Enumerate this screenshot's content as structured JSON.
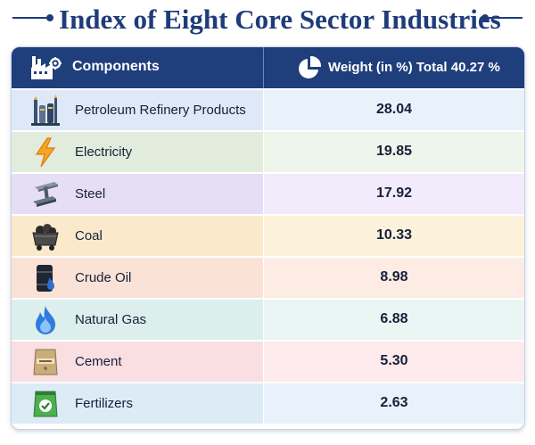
{
  "title": "Index of Eight Core Sector Industries",
  "header": {
    "components_label": "Components",
    "components_icon": "factory-icon",
    "weight_label": "Weight (in %) Total 40.27 %",
    "weight_icon": "pie-chart-icon"
  },
  "rows": [
    {
      "name": "Petroleum Refinery Products",
      "value": "28.04",
      "icon": "refinery-icon",
      "colors": {
        "left": "#dde9f6",
        "right": "#e9f1fb"
      }
    },
    {
      "name": "Electricity",
      "value": "19.85",
      "icon": "lightning-icon",
      "colors": {
        "left": "#e2ecdc",
        "right": "#eef5ea"
      }
    },
    {
      "name": "Steel",
      "value": "17.92",
      "icon": "steel-beam-icon",
      "colors": {
        "left": "#e6def5",
        "right": "#f1ebfb"
      }
    },
    {
      "name": "Coal",
      "value": "10.33",
      "icon": "coal-cart-icon",
      "colors": {
        "left": "#faeacb",
        "right": "#fcf2dc"
      }
    },
    {
      "name": "Crude Oil",
      "value": "8.98",
      "icon": "oil-barrel-icon",
      "colors": {
        "left": "#fbe2d6",
        "right": "#fdece3"
      }
    },
    {
      "name": "Natural Gas",
      "value": "6.88",
      "icon": "flame-icon",
      "colors": {
        "left": "#dcefec",
        "right": "#e9f6f3"
      }
    },
    {
      "name": "Cement",
      "value": "5.30",
      "icon": "cement-bag-icon",
      "colors": {
        "left": "#f9dee2",
        "right": "#fceaec"
      }
    },
    {
      "name": "Fertilizers",
      "value": "2.63",
      "icon": "fertilizer-bag-icon",
      "colors": {
        "left": "#ddebf7",
        "right": "#e9f2fb"
      }
    }
  ]
}
